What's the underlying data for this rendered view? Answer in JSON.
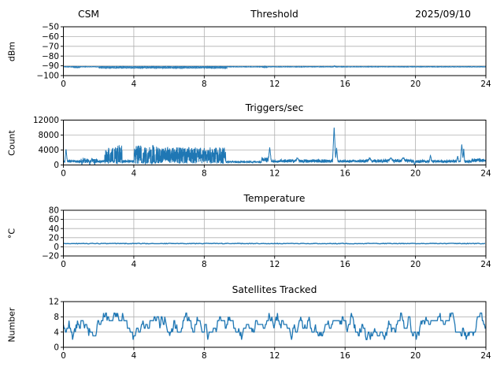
{
  "figure": {
    "background": "#ffffff",
    "line_color": "#1f77b4",
    "grid_color": "#b0b0b0",
    "spine_color": "#000000"
  },
  "chart_data": [
    {
      "type": "line",
      "name": "threshold",
      "title_left": "CSM",
      "title": "Threshold",
      "title_right": "2025/09/10",
      "ylabel": "dBm",
      "xlabel": "",
      "xlim": [
        0,
        24
      ],
      "ylim": [
        -100,
        -50
      ],
      "xticks": [
        0,
        4,
        8,
        12,
        16,
        20,
        24
      ],
      "xtick_labels": [
        "0",
        "4",
        "8",
        "12",
        "16",
        "20",
        "24"
      ],
      "yticks": [
        -100,
        -90,
        -80,
        -70,
        -60,
        -50
      ],
      "ytick_labels": [
        "−100",
        "−90",
        "−80",
        "−70",
        "−60",
        "−50"
      ],
      "grid": true,
      "line_color": "#1f77b4",
      "series": [
        {
          "name": "rf-threshold-level",
          "mode": "noise",
          "seed": 101,
          "dt": 0.012,
          "lw": 1.2,
          "segments": [
            [
              0,
              24,
              -91.15,
              -90.75
            ]
          ],
          "spikes": [
            [
              11.45,
              -90.3,
              0.06
            ],
            [
              15.4,
              -90.0,
              0.05
            ]
          ]
        },
        {
          "name": "rf-threshold-dips",
          "mode": "noise",
          "seed": 55,
          "dt": 0.012,
          "lw": 0.9,
          "opacity": 0.9,
          "segments": [
            [
              0.55,
              0.95,
              -92.0,
              -91.4
            ],
            [
              2.0,
              9.3,
              -92.55,
              -91.5
            ],
            [
              11.3,
              11.6,
              -91.9,
              -91.3
            ]
          ]
        }
      ]
    },
    {
      "type": "line",
      "name": "triggers",
      "title": "Triggers/sec",
      "ylabel": "Count",
      "xlabel": "",
      "xlim": [
        0,
        24
      ],
      "ylim": [
        0,
        12000
      ],
      "xticks": [
        0,
        4,
        8,
        12,
        16,
        20,
        24
      ],
      "xtick_labels": [
        "0",
        "4",
        "8",
        "12",
        "16",
        "20",
        "24"
      ],
      "yticks": [
        0,
        4000,
        8000,
        12000
      ],
      "ytick_labels": [
        "0",
        "4000",
        "8000",
        "12000"
      ],
      "grid": true,
      "line_color": "#1f77b4",
      "series": [
        {
          "name": "trigger-rate",
          "mode": "noise",
          "seed": 202,
          "dt": 0.008,
          "lw": 1,
          "segments": [
            [
              0,
              24,
              650,
              1300
            ],
            [
              0.9,
              1.95,
              500,
              1700
            ],
            [
              2.35,
              2.62,
              250,
              4600
            ],
            [
              2.68,
              2.82,
              250,
              4600
            ],
            [
              2.9,
              3.12,
              250,
              5100
            ],
            [
              3.16,
              3.34,
              250,
              5400
            ],
            [
              4.02,
              9.22,
              350,
              4700
            ],
            [
              4.02,
              4.45,
              350,
              5300
            ],
            [
              4.52,
              4.75,
              350,
              5300
            ],
            [
              4.79,
              5.0,
              350,
              5200
            ],
            [
              5.05,
              5.2,
              350,
              5300
            ],
            [
              5.25,
              5.4,
              350,
              5100
            ],
            [
              4.45,
              4.52,
              400,
              900
            ],
            [
              4.75,
              4.79,
              400,
              900
            ],
            [
              5.0,
              5.05,
              400,
              900
            ],
            [
              5.2,
              5.25,
              400,
              900
            ],
            [
              5.4,
              5.44,
              400,
              900
            ],
            [
              9.22,
              11.25,
              600,
              1050
            ],
            [
              11.25,
              11.65,
              800,
              2000
            ],
            [
              12.3,
              15.3,
              650,
              1500
            ],
            [
              16.2,
              19.9,
              650,
              1500
            ],
            [
              23.2,
              24,
              800,
              1700
            ]
          ],
          "spikes": [
            [
              0.15,
              4300,
              0.07
            ],
            [
              1.05,
              0,
              0.03
            ],
            [
              1.5,
              0,
              0.03
            ],
            [
              1.78,
              0,
              0.03
            ],
            [
              11.72,
              4700,
              0.09
            ],
            [
              13.3,
              1900,
              0.12
            ],
            [
              15.38,
              10300,
              0.09
            ],
            [
              15.52,
              4600,
              0.07
            ],
            [
              17.4,
              1900,
              0.12
            ],
            [
              18.6,
              1900,
              0.15
            ],
            [
              19.3,
              2000,
              0.12
            ],
            [
              19.95,
              0,
              0.05
            ],
            [
              20.85,
              2600,
              0.07
            ],
            [
              22.4,
              2400,
              0.06
            ],
            [
              22.63,
              5600,
              0.08
            ],
            [
              22.74,
              4500,
              0.05
            ]
          ]
        }
      ]
    },
    {
      "type": "line",
      "name": "temperature",
      "title": "Temperature",
      "ylabel": "°C",
      "xlabel": "",
      "xlim": [
        0,
        24
      ],
      "ylim": [
        -20,
        80
      ],
      "xticks": [
        0,
        4,
        8,
        12,
        16,
        20,
        24
      ],
      "xtick_labels": [
        "0",
        "4",
        "8",
        "12",
        "16",
        "20",
        "24"
      ],
      "yticks": [
        -20,
        0,
        20,
        40,
        60,
        80
      ],
      "ytick_labels": [
        "−20",
        "0",
        "20",
        "40",
        "60",
        "80"
      ],
      "grid": true,
      "line_color": "#1f77b4",
      "series": [
        {
          "name": "temperature-reading",
          "mode": "noise",
          "seed": 303,
          "dt": 0.05,
          "lw": 1.4,
          "segments": [
            [
              0,
              24,
              6.4,
              7.8
            ]
          ]
        }
      ]
    },
    {
      "type": "line",
      "name": "satellites",
      "title": "Satellites Tracked",
      "ylabel": "Number",
      "xlabel": "",
      "xlim": [
        0,
        24
      ],
      "ylim": [
        0,
        12
      ],
      "xticks": [
        0,
        4,
        8,
        12,
        16,
        20,
        24
      ],
      "xtick_labels": [
        "0",
        "4",
        "8",
        "12",
        "16",
        "20",
        "24"
      ],
      "yticks": [
        0,
        4,
        8,
        12
      ],
      "ytick_labels": [
        "0",
        "4",
        "8",
        "12"
      ],
      "grid": true,
      "line_color": "#1f77b4",
      "series": [
        {
          "name": "satellites-tracked",
          "mode": "walk",
          "seed": 404,
          "dt": 0.04,
          "lw": 1.3,
          "start": 6,
          "segments": [
            [
              0,
              24,
              2,
              9
            ]
          ]
        }
      ]
    }
  ]
}
